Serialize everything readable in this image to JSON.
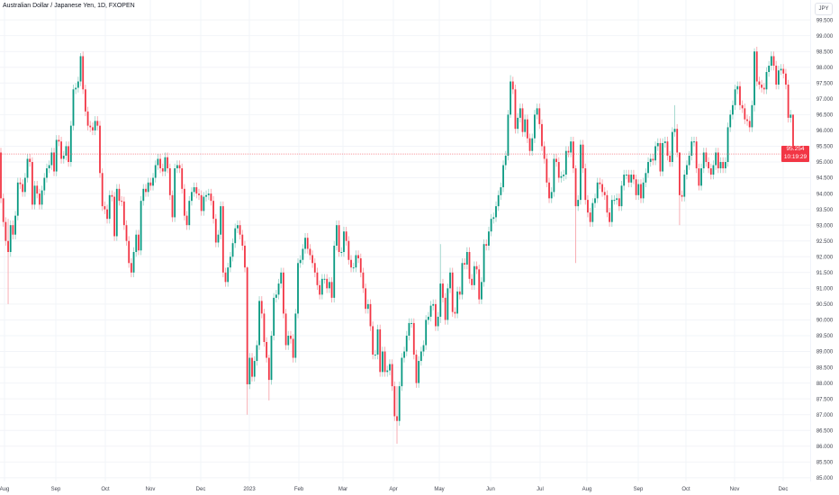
{
  "header": {
    "title": "Australian Dollar / Japanese Yen, 1D, FXOPEN",
    "currency": "JPY"
  },
  "price_label": {
    "price": "95.254",
    "countdown": "10:19:29"
  },
  "colors": {
    "up": "#089981",
    "down": "#f23645",
    "up_wick": "#9fd6cb",
    "down_wick": "#f7a6ac",
    "grid": "#f2f4f8",
    "price_line": "#f23645",
    "axis_text": "#434651"
  },
  "chart_data": {
    "type": "candlestick",
    "title": "Australian Dollar / Japanese Yen, 1D, FXOPEN",
    "ylim": [
      84.74,
      100.13
    ],
    "y_ticks": [
      85,
      85.5,
      86,
      86.5,
      87,
      87.5,
      88,
      88.5,
      89,
      89.5,
      90,
      90.5,
      91,
      91.5,
      92,
      92.5,
      93,
      93.5,
      94,
      94.5,
      95,
      95.5,
      96,
      96.5,
      97,
      97.5,
      98,
      98.5,
      99,
      99.5
    ],
    "x_ticks": [
      "Aug",
      "Sep",
      "Oct",
      "Nov",
      "Dec",
      "2023",
      "Feb",
      "Mar",
      "Apr",
      "May",
      "Jun",
      "Jul",
      "Aug",
      "Sep",
      "Oct",
      "Nov",
      "Dec"
    ],
    "grid": true,
    "current_price": 95.254,
    "first_open": 95.3,
    "candles_note_format": "number = close (open = previous close); array = [close, high, low]",
    "candles": [
      93.85,
      93.1,
      92.5,
      [
        92.15,
        93.2,
        90.5
      ],
      93.0,
      92.7,
      93.3,
      94.35,
      94.3,
      94.05,
      94.5,
      95.1,
      95.0,
      93.65,
      94.25,
      94.0,
      93.65,
      94.1,
      94.5,
      94.8,
      94.9,
      95.3,
      94.7,
      95.7,
      95.65,
      95.1,
      95.2,
      95.5,
      95.0,
      96.15,
      97.3,
      97.35,
      97.55,
      [
        98.35,
        98.45,
        97.4
      ],
      97.3,
      96.6,
      96.15,
      96.1,
      96.0,
      96.3,
      96.15,
      94.65,
      93.6,
      93.5,
      93.2,
      93.95,
      93.9,
      92.65,
      94.15,
      93.77,
      93.75,
      93.0,
      92.5,
      91.8,
      91.5,
      92.15,
      92.7,
      92.2,
      93.77,
      94.15,
      94.05,
      94.35,
      94.25,
      94.5,
      94.9,
      95.1,
      94.8,
      94.7,
      95.15,
      94.8,
      93.95,
      93.25,
      94.8,
      94.9,
      94.8,
      94.15,
      93.3,
      93.0,
      93.77,
      94.05,
      94.2,
      94.0,
      93.95,
      93.45,
      93.9,
      93.95,
      94.0,
      93.77,
      93.2,
      92.45,
      92.7,
      93.6,
      91.5,
      91.2,
      91.66,
      92.0,
      92.43,
      92.9,
      93.0,
      92.7,
      92.35,
      91.66,
      [
        87.96,
        91.7,
        87.0
      ],
      88.8,
      88.2,
      88.7,
      89.2,
      90.6,
      90.2,
      89.3,
      88.8,
      [
        88.1,
        88.9,
        87.45
      ],
      89.5,
      90.7,
      90.8,
      91.15,
      91.5,
      90.2,
      89.2,
      89.5,
      89.4,
      88.8,
      90.2,
      91.8,
      91.9,
      92.25,
      92.6,
      92.25,
      92.05,
      91.8,
      91.5,
      91.1,
      90.8,
      91.3,
      91.3,
      91.0,
      91.2,
      90.7,
      92.35,
      93.0,
      92.15,
      92.15,
      92.8,
      92.5,
      91.9,
      91.66,
      91.66,
      92.05,
      91.95,
      91.5,
      91.0,
      90.35,
      90.5,
      89.8,
      88.9,
      88.9,
      89.7,
      88.35,
      89.0,
      88.35,
      88.4,
      88.6,
      87.9,
      86.95,
      [
        86.8,
        87.9,
        86.08
      ],
      87.9,
      88.8,
      89.0,
      89.5,
      89.9,
      89.9,
      88.9,
      88.0,
      88.7,
      89.0,
      89.2,
      90.0,
      90.1,
      90.45,
      90.5,
      89.8,
      90.1,
      [
        91.15,
        92.4,
        89.9
      ],
      90.7,
      90.0,
      91.0,
      91.5,
      90.25,
      90.2,
      90.9,
      90.8,
      91.8,
      91.75,
      92.15,
      91.3,
      91.1,
      91.7,
      91.6,
      90.65,
      91.2,
      92.4,
      92.35,
      92.8,
      93.2,
      93.25,
      93.6,
      93.95,
      94.2,
      94.9,
      95.2,
      96.5,
      [
        97.55,
        97.75,
        96.4
      ],
      97.3,
      96.05,
      96.4,
      96.7,
      95.95,
      96.35,
      95.75,
      95.35,
      95.75,
      96.5,
      96.7,
      96.2,
      95.5,
      95.1,
      94.35,
      93.85,
      94.05,
      95.1,
      95.0,
      94.5,
      94.55,
      94.6,
      95.35,
      95.3,
      95.65,
      94.8,
      [
        93.6,
        94.9,
        91.8
      ],
      93.8,
      95.55,
      94.8,
      93.8,
      93.4,
      93.1,
      93.7,
      93.85,
      94.35,
      94.3,
      94.05,
      93.95,
      93.4,
      93.1,
      93.8,
      93.8,
      93.85,
      93.6,
      94.25,
      94.6,
      94.6,
      94.35,
      94.6,
      94.45,
      93.95,
      94.3,
      93.85,
      94.35,
      94.65,
      95.0,
      95.1,
      95.05,
      95.5,
      95.6,
      94.7,
      95.6,
      95.65,
      95.2,
      95.0,
      95.95,
      [
        96.05,
        96.8,
        95.8
      ],
      95.3,
      [
        93.95,
        95.3,
        93.0
      ],
      93.9,
      94.6,
      94.9,
      95.2,
      95.65,
      95.65,
      94.8,
      94.25,
      94.8,
      95.3,
      95.0,
      94.8,
      94.6,
      94.9,
      95.3,
      94.8,
      95.0,
      94.8,
      95.0,
      96.1,
      96.5,
      96.8,
      97.3,
      97.4,
      96.8,
      96.7,
      96.35,
      96.3,
      96.1,
      96.8,
      [
        98.5,
        98.6,
        96.6
      ],
      97.55,
      97.45,
      97.35,
      97.3,
      97.85,
      98.05,
      98.35,
      98.05,
      97.45,
      97.9,
      97.95,
      97.8,
      97.45,
      96.4,
      96.5,
      [
        95.254,
        96.5,
        95.0
      ]
    ]
  }
}
